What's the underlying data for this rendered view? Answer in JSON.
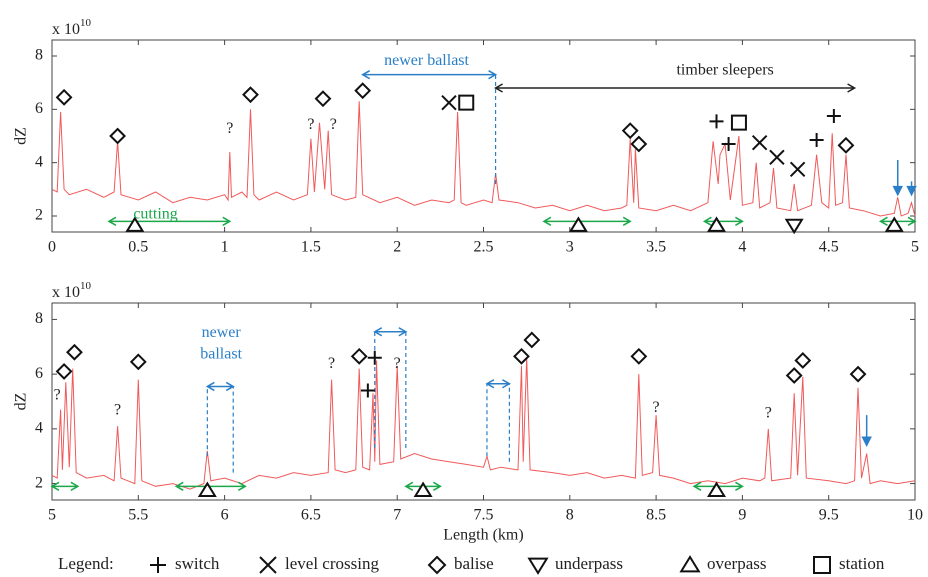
{
  "chart_data": [
    {
      "type": "line",
      "ylabel": "dZ",
      "y_multiplier": {
        "base": "x 10",
        "exponent": "10"
      },
      "xlim": [
        0,
        5
      ],
      "ylim": [
        1.4,
        8.6
      ],
      "xticks": [
        0,
        0.5,
        1,
        1.5,
        2,
        2.5,
        3,
        3.5,
        4,
        4.5,
        5
      ],
      "yticks": [
        2,
        4,
        6,
        8
      ],
      "series": [
        {
          "color": "#f05a5a",
          "x": [
            0,
            0.03,
            0.05,
            0.07,
            0.1,
            0.2,
            0.3,
            0.36,
            0.38,
            0.4,
            0.5,
            0.6,
            0.7,
            0.8,
            0.9,
            1.0,
            1.02,
            1.03,
            1.04,
            1.1,
            1.13,
            1.15,
            1.17,
            1.2,
            1.3,
            1.4,
            1.48,
            1.5,
            1.52,
            1.55,
            1.58,
            1.6,
            1.62,
            1.7,
            1.76,
            1.78,
            1.8,
            1.9,
            2.0,
            2.1,
            2.2,
            2.3,
            2.33,
            2.35,
            2.37,
            2.4,
            2.5,
            2.55,
            2.57,
            2.59,
            2.7,
            2.8,
            2.9,
            3.0,
            3.1,
            3.2,
            3.3,
            3.33,
            3.35,
            3.37,
            3.38,
            3.4,
            3.5,
            3.6,
            3.7,
            3.8,
            3.83,
            3.86,
            3.87,
            3.9,
            3.93,
            3.98,
            4.0,
            4.06,
            4.08,
            4.1,
            4.16,
            4.18,
            4.2,
            4.28,
            4.3,
            4.32,
            4.4,
            4.43,
            4.46,
            4.5,
            4.52,
            4.54,
            4.58,
            4.6,
            4.62,
            4.7,
            4.8,
            4.88,
            4.9,
            4.92,
            4.96,
            4.98,
            5.0
          ],
          "values": [
            3.0,
            2.9,
            5.9,
            3.0,
            2.8,
            3.0,
            2.7,
            2.9,
            4.8,
            2.8,
            2.6,
            2.9,
            2.5,
            2.7,
            2.6,
            2.8,
            2.6,
            4.4,
            2.7,
            2.9,
            2.7,
            6.0,
            2.8,
            2.6,
            2.9,
            2.6,
            2.8,
            4.9,
            2.9,
            5.5,
            3.0,
            5.2,
            2.8,
            2.6,
            2.7,
            6.3,
            2.8,
            2.5,
            2.7,
            2.4,
            2.6,
            2.5,
            2.6,
            5.9,
            2.5,
            2.4,
            2.6,
            2.5,
            3.6,
            2.6,
            2.5,
            2.3,
            2.4,
            2.2,
            2.4,
            2.2,
            2.3,
            2.4,
            4.9,
            2.5,
            4.5,
            2.3,
            2.2,
            2.4,
            2.2,
            2.5,
            4.8,
            3.2,
            4.3,
            4.7,
            2.6,
            5.0,
            2.4,
            2.5,
            4.0,
            2.3,
            2.5,
            3.8,
            2.3,
            2.2,
            3.2,
            2.2,
            2.4,
            4.3,
            2.5,
            2.3,
            5.1,
            2.4,
            2.5,
            4.3,
            2.3,
            2.2,
            2.0,
            2.1,
            2.7,
            2.0,
            2.1,
            2.5,
            2.0
          ]
        }
      ],
      "markers": [
        {
          "symbol": "diamond",
          "x": 0.07,
          "y": 6.45
        },
        {
          "symbol": "diamond",
          "x": 0.38,
          "y": 5.0
        },
        {
          "symbol": "diamond",
          "x": 1.15,
          "y": 6.55
        },
        {
          "symbol": "diamond",
          "x": 1.57,
          "y": 6.4
        },
        {
          "symbol": "diamond",
          "x": 1.8,
          "y": 6.7
        },
        {
          "symbol": "cross",
          "x": 2.3,
          "y": 6.25
        },
        {
          "symbol": "square",
          "x": 2.4,
          "y": 6.25
        },
        {
          "symbol": "diamond",
          "x": 3.35,
          "y": 5.2
        },
        {
          "symbol": "diamond",
          "x": 3.4,
          "y": 4.7
        },
        {
          "symbol": "plus",
          "x": 3.85,
          "y": 5.55
        },
        {
          "symbol": "square",
          "x": 3.98,
          "y": 5.5
        },
        {
          "symbol": "plus",
          "x": 3.92,
          "y": 4.7
        },
        {
          "symbol": "cross",
          "x": 4.1,
          "y": 4.75
        },
        {
          "symbol": "cross",
          "x": 4.2,
          "y": 4.2
        },
        {
          "symbol": "cross",
          "x": 4.32,
          "y": 3.75
        },
        {
          "symbol": "plus",
          "x": 4.43,
          "y": 4.85
        },
        {
          "symbol": "plus",
          "x": 4.53,
          "y": 5.75
        },
        {
          "symbol": "diamond",
          "x": 4.6,
          "y": 4.65
        },
        {
          "symbol": "tri-up",
          "x": 0.48,
          "y": 1.65
        },
        {
          "symbol": "tri-up",
          "x": 3.05,
          "y": 1.65
        },
        {
          "symbol": "tri-up",
          "x": 3.85,
          "y": 1.65
        },
        {
          "symbol": "tri-up",
          "x": 4.88,
          "y": 1.65
        },
        {
          "symbol": "tri-down",
          "x": 4.3,
          "y": 1.65
        }
      ],
      "notes": [
        {
          "text": "?",
          "x": 1.03,
          "y": 5.25
        },
        {
          "text": "?",
          "x": 1.5,
          "y": 5.4
        },
        {
          "text": "?",
          "x": 1.63,
          "y": 5.4
        },
        {
          "text": "newer ballast",
          "x": 2.17,
          "y": 7.8,
          "color": "#2a7fc8"
        },
        {
          "text": "timber sleepers",
          "x": 3.9,
          "y": 7.45,
          "color": "#222"
        },
        {
          "text": "cutting",
          "x": 0.6,
          "y": 2.05,
          "color": "#1aa84a"
        }
      ],
      "spans": [
        {
          "x": [
            1.8,
            2.57
          ],
          "y": 7.3,
          "color": "#2a7fc8"
        },
        {
          "x": [
            2.57,
            4.65
          ],
          "y": 6.8,
          "color": "#222"
        },
        {
          "x": [
            0.33,
            1.03
          ],
          "y": 1.8,
          "color": "#1aa84a"
        },
        {
          "x": [
            2.85,
            3.35
          ],
          "y": 1.8,
          "color": "#1aa84a"
        },
        {
          "x": [
            3.78,
            4.0
          ],
          "y": 1.8,
          "color": "#1aa84a"
        },
        {
          "x": [
            4.8,
            5.0
          ],
          "y": 1.8,
          "color": "#1aa84a"
        }
      ],
      "guides": [
        {
          "x": 2.57,
          "y": [
            3.2,
            7.3
          ],
          "color": "#2a7fc8"
        }
      ],
      "pointers": [
        {
          "x": 4.9,
          "y": [
            4.1,
            2.8
          ],
          "color": "#2a7fc8"
        },
        {
          "x": 4.98,
          "y": [
            3.3,
            2.8
          ],
          "color": "#2a7fc8"
        }
      ]
    },
    {
      "type": "line",
      "ylabel": "dZ",
      "xlabel": "Length (km)",
      "y_multiplier": {
        "base": "x 10",
        "exponent": "10"
      },
      "xlim": [
        5,
        10
      ],
      "ylim": [
        1.4,
        8.6
      ],
      "xticks": [
        5,
        5.5,
        6,
        6.5,
        7,
        7.5,
        8,
        8.5,
        9,
        9.5,
        10
      ],
      "yticks": [
        2,
        4,
        6,
        8
      ],
      "series": [
        {
          "color": "#f05a5a",
          "x": [
            5.0,
            5.03,
            5.05,
            5.06,
            5.08,
            5.1,
            5.12,
            5.14,
            5.2,
            5.3,
            5.36,
            5.38,
            5.4,
            5.48,
            5.5,
            5.52,
            5.6,
            5.7,
            5.8,
            5.88,
            5.9,
            5.92,
            6.0,
            6.1,
            6.2,
            6.3,
            6.4,
            6.5,
            6.6,
            6.62,
            6.64,
            6.7,
            6.76,
            6.78,
            6.8,
            6.84,
            6.86,
            6.87,
            6.88,
            6.9,
            6.98,
            7.0,
            7.02,
            7.1,
            7.2,
            7.3,
            7.4,
            7.5,
            7.52,
            7.54,
            7.6,
            7.7,
            7.72,
            7.73,
            7.75,
            7.77,
            7.9,
            8.0,
            8.1,
            8.2,
            8.3,
            8.38,
            8.4,
            8.42,
            8.48,
            8.5,
            8.52,
            8.6,
            8.7,
            8.8,
            8.9,
            9.0,
            9.1,
            9.13,
            9.15,
            9.17,
            9.28,
            9.3,
            9.32,
            9.35,
            9.37,
            9.5,
            9.6,
            9.65,
            9.67,
            9.69,
            9.72,
            9.74,
            9.8,
            9.9,
            10.0
          ],
          "values": [
            2.3,
            2.2,
            4.7,
            2.5,
            5.7,
            2.6,
            6.2,
            2.4,
            2.2,
            2.3,
            2.1,
            4.1,
            2.2,
            2.0,
            5.8,
            2.1,
            1.9,
            2.0,
            1.8,
            2.0,
            3.2,
            2.1,
            2.2,
            2.0,
            2.3,
            2.2,
            2.4,
            2.3,
            2.4,
            5.8,
            2.5,
            2.4,
            2.5,
            6.2,
            2.6,
            2.5,
            5.3,
            2.8,
            6.5,
            2.7,
            2.8,
            6.3,
            2.9,
            3.1,
            2.9,
            2.8,
            2.7,
            2.6,
            3.0,
            2.5,
            2.6,
            2.5,
            6.3,
            2.8,
            6.6,
            2.5,
            2.4,
            2.3,
            2.4,
            2.2,
            2.3,
            2.2,
            6.0,
            2.3,
            2.4,
            4.5,
            2.3,
            2.2,
            2.0,
            2.1,
            2.0,
            2.2,
            2.1,
            2.2,
            4.0,
            2.1,
            2.2,
            5.3,
            2.3,
            5.9,
            2.2,
            2.1,
            2.0,
            2.1,
            5.5,
            2.2,
            3.1,
            2.0,
            2.1,
            2.0,
            2.1
          ]
        }
      ],
      "markers": [
        {
          "symbol": "diamond",
          "x": 5.07,
          "y": 6.1
        },
        {
          "symbol": "diamond",
          "x": 5.13,
          "y": 6.8
        },
        {
          "symbol": "diamond",
          "x": 5.5,
          "y": 6.45
        },
        {
          "symbol": "diamond",
          "x": 6.78,
          "y": 6.65
        },
        {
          "symbol": "diamond",
          "x": 7.72,
          "y": 6.65
        },
        {
          "symbol": "diamond",
          "x": 7.78,
          "y": 7.25
        },
        {
          "symbol": "diamond",
          "x": 8.4,
          "y": 6.65
        },
        {
          "symbol": "diamond",
          "x": 9.3,
          "y": 5.95
        },
        {
          "symbol": "diamond",
          "x": 9.35,
          "y": 6.5
        },
        {
          "symbol": "diamond",
          "x": 9.67,
          "y": 6.0
        },
        {
          "symbol": "plus",
          "x": 6.87,
          "y": 6.6
        },
        {
          "symbol": "plus",
          "x": 6.83,
          "y": 5.4
        },
        {
          "symbol": "tri-up",
          "x": 5.9,
          "y": 1.75
        },
        {
          "symbol": "tri-up",
          "x": 7.15,
          "y": 1.75
        },
        {
          "symbol": "tri-up",
          "x": 8.85,
          "y": 1.75
        }
      ],
      "notes": [
        {
          "text": "?",
          "x": 5.03,
          "y": 5.2
        },
        {
          "text": "?",
          "x": 5.38,
          "y": 4.65
        },
        {
          "text": "?",
          "x": 6.62,
          "y": 6.35
        },
        {
          "text": "?",
          "x": 7.0,
          "y": 6.35
        },
        {
          "text": "?",
          "x": 8.5,
          "y": 4.75
        },
        {
          "text": "?",
          "x": 9.15,
          "y": 4.55
        },
        {
          "text": "newer",
          "x": 5.98,
          "y": 7.5,
          "color": "#2a7fc8"
        },
        {
          "text": "ballast",
          "x": 5.98,
          "y": 6.7,
          "color": "#2a7fc8"
        }
      ],
      "spans": [
        {
          "x": [
            5.9,
            6.05
          ],
          "y": 5.55,
          "color": "#2a7fc8"
        },
        {
          "x": [
            6.87,
            7.05
          ],
          "y": 7.55,
          "color": "#2a7fc8"
        },
        {
          "x": [
            7.52,
            7.65
          ],
          "y": 5.65,
          "color": "#2a7fc8"
        },
        {
          "x": [
            5.0,
            5.15
          ],
          "y": 1.9,
          "color": "#1aa84a"
        },
        {
          "x": [
            5.72,
            6.12
          ],
          "y": 1.9,
          "color": "#1aa84a"
        },
        {
          "x": [
            7.05,
            7.25
          ],
          "y": 1.9,
          "color": "#1aa84a"
        },
        {
          "x": [
            8.72,
            9.0
          ],
          "y": 1.9,
          "color": "#1aa84a"
        }
      ],
      "guides": [
        {
          "x": 5.9,
          "y": [
            3.0,
            5.55
          ],
          "color": "#2a7fc8"
        },
        {
          "x": 6.05,
          "y": [
            2.4,
            5.55
          ],
          "color": "#2a7fc8"
        },
        {
          "x": 6.87,
          "y": [
            3.3,
            7.55
          ],
          "color": "#2a7fc8"
        },
        {
          "x": 7.05,
          "y": [
            3.3,
            7.55
          ],
          "color": "#2a7fc8"
        },
        {
          "x": 7.52,
          "y": [
            3.0,
            5.65
          ],
          "color": "#2a7fc8"
        },
        {
          "x": 7.65,
          "y": [
            2.8,
            5.65
          ],
          "color": "#2a7fc8"
        }
      ],
      "pointers": [
        {
          "x": 9.72,
          "y": [
            4.5,
            3.4
          ],
          "color": "#2a7fc8"
        }
      ]
    }
  ],
  "legend": {
    "title": "Legend:",
    "items": [
      {
        "label": "switch",
        "symbol": "plus"
      },
      {
        "label": "level crossing",
        "symbol": "cross"
      },
      {
        "label": "balise",
        "symbol": "diamond"
      },
      {
        "label": "underpass",
        "symbol": "tri-down"
      },
      {
        "label": "overpass",
        "symbol": "tri-up"
      },
      {
        "label": "station",
        "symbol": "square"
      }
    ]
  }
}
